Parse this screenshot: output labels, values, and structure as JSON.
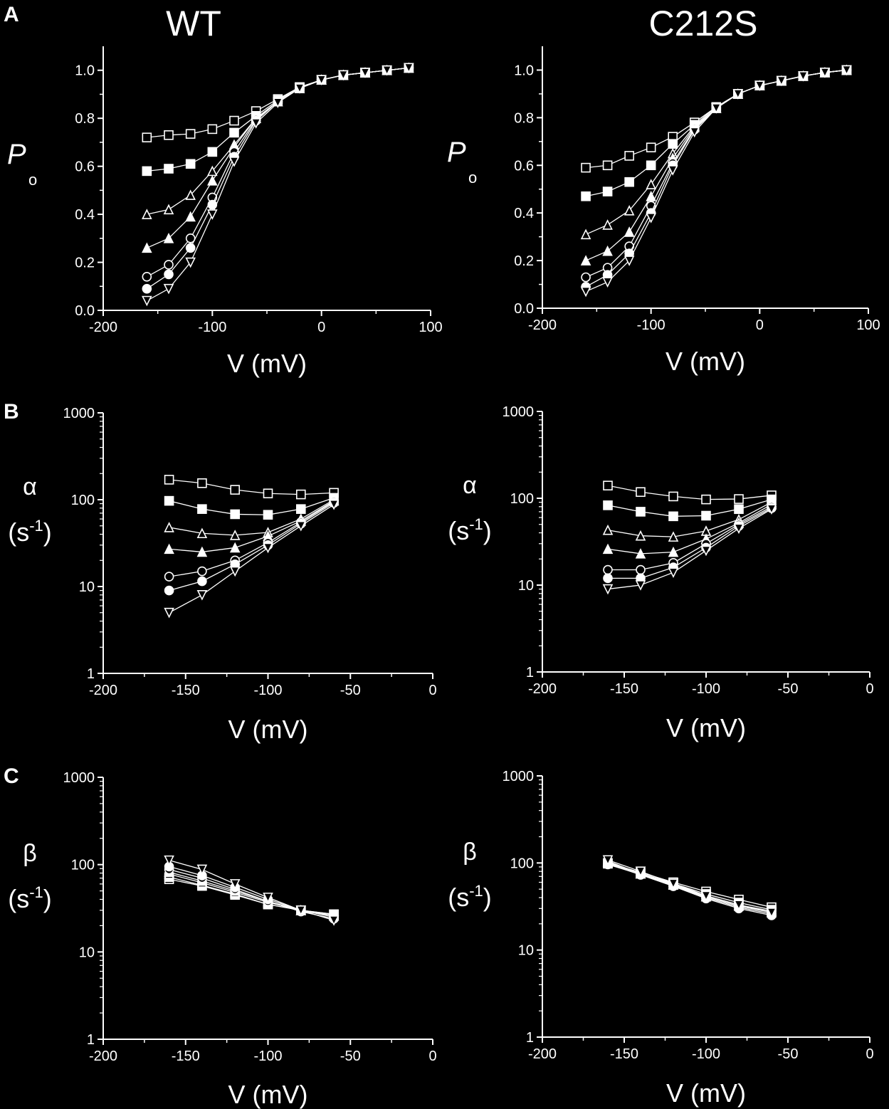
{
  "column_titles": [
    "WT",
    "C212S"
  ],
  "panel_letters": [
    "A",
    "B",
    "C"
  ],
  "chart_data": [
    {
      "id": "A-WT",
      "panel": "A",
      "type": "scatter",
      "xlim": [
        -200,
        100
      ],
      "ylim": [
        0,
        1.1
      ],
      "yscale": "linear",
      "xticks": [
        -200,
        -100,
        0,
        100
      ],
      "xtick_labels": [
        "-200",
        "-100",
        "0",
        "100"
      ],
      "yticks": [
        0,
        0.2,
        0.4,
        0.6,
        0.8,
        1.0
      ],
      "ytick_labels": [
        "0.0",
        "0.2",
        "0.4",
        "0.6",
        "0.8",
        "1.0"
      ],
      "xlabel": "V (mV)",
      "ylabel": {
        "main": "P",
        "sub": "o"
      },
      "x": [
        -160,
        -140,
        -120,
        -100,
        -80,
        -60,
        -40,
        -20,
        0,
        20,
        40,
        60,
        80
      ],
      "series": [
        {
          "marker": "open-square",
          "values": [
            0.72,
            0.73,
            0.735,
            0.755,
            0.79,
            0.83,
            0.88,
            0.93,
            0.96,
            0.98,
            0.99,
            1.0,
            1.01
          ]
        },
        {
          "marker": "filled-square",
          "values": [
            0.58,
            0.59,
            0.61,
            0.66,
            0.74,
            0.81,
            0.875,
            0.93,
            0.96,
            0.98,
            0.99,
            1.0,
            1.01
          ]
        },
        {
          "marker": "open-triangle",
          "values": [
            0.4,
            0.42,
            0.48,
            0.58,
            0.69,
            0.8,
            0.87,
            0.925,
            0.96,
            0.98,
            0.99,
            1.0,
            1.01
          ]
        },
        {
          "marker": "filled-triangle",
          "values": [
            0.26,
            0.3,
            0.39,
            0.54,
            0.68,
            0.8,
            0.87,
            0.925,
            0.96,
            0.98,
            0.99,
            1.0,
            1.01
          ]
        },
        {
          "marker": "open-circle",
          "values": [
            0.14,
            0.19,
            0.3,
            0.47,
            0.66,
            0.795,
            0.87,
            0.925,
            0.96,
            0.98,
            0.99,
            1.0,
            1.01
          ]
        },
        {
          "marker": "filled-circle",
          "values": [
            0.09,
            0.15,
            0.26,
            0.44,
            0.64,
            0.79,
            0.87,
            0.925,
            0.96,
            0.98,
            0.99,
            1.0,
            1.01
          ]
        },
        {
          "marker": "open-inv-triangle",
          "values": [
            0.04,
            0.09,
            0.2,
            0.4,
            0.62,
            0.78,
            0.865,
            0.925,
            0.96,
            0.98,
            0.99,
            1.0,
            1.01
          ]
        }
      ]
    },
    {
      "id": "A-C212S",
      "panel": "A",
      "type": "scatter",
      "xlim": [
        -200,
        100
      ],
      "ylim": [
        0,
        1.1
      ],
      "yscale": "linear",
      "xticks": [
        -200,
        -100,
        0,
        100
      ],
      "xtick_labels": [
        "-200",
        "-100",
        "0",
        "100"
      ],
      "yticks": [
        0,
        0.2,
        0.4,
        0.6,
        0.8,
        1.0
      ],
      "ytick_labels": [
        "0.0",
        "0.2",
        "0.4",
        "0.6",
        "0.8",
        "1.0"
      ],
      "xlabel": "V (mV)",
      "ylabel": {
        "main": "P",
        "sub": "o"
      },
      "x": [
        -160,
        -140,
        -120,
        -100,
        -80,
        -60,
        -40,
        -20,
        0,
        20,
        40,
        60,
        80
      ],
      "series": [
        {
          "marker": "open-square",
          "values": [
            0.59,
            0.6,
            0.64,
            0.675,
            0.72,
            0.78,
            0.845,
            0.9,
            0.935,
            0.955,
            0.975,
            0.99,
            1.0
          ]
        },
        {
          "marker": "filled-square",
          "values": [
            0.47,
            0.49,
            0.53,
            0.6,
            0.69,
            0.77,
            0.845,
            0.9,
            0.935,
            0.955,
            0.975,
            0.99,
            1.0
          ]
        },
        {
          "marker": "open-triangle",
          "values": [
            0.31,
            0.35,
            0.41,
            0.52,
            0.65,
            0.765,
            0.84,
            0.9,
            0.935,
            0.955,
            0.975,
            0.99,
            1.0
          ]
        },
        {
          "marker": "filled-triangle",
          "values": [
            0.2,
            0.24,
            0.32,
            0.47,
            0.63,
            0.76,
            0.84,
            0.9,
            0.935,
            0.955,
            0.975,
            0.99,
            1.0
          ]
        },
        {
          "marker": "open-circle",
          "values": [
            0.13,
            0.17,
            0.26,
            0.43,
            0.61,
            0.755,
            0.84,
            0.9,
            0.935,
            0.955,
            0.975,
            0.99,
            1.0
          ]
        },
        {
          "marker": "filled-circle",
          "values": [
            0.09,
            0.14,
            0.23,
            0.4,
            0.6,
            0.75,
            0.84,
            0.9,
            0.935,
            0.955,
            0.975,
            0.99,
            1.0
          ]
        },
        {
          "marker": "open-inv-triangle",
          "values": [
            0.07,
            0.11,
            0.2,
            0.38,
            0.58,
            0.74,
            0.84,
            0.9,
            0.935,
            0.955,
            0.975,
            0.99,
            1.0
          ]
        }
      ]
    },
    {
      "id": "B-WT",
      "panel": "B",
      "type": "scatter",
      "xlim": [
        -200,
        0
      ],
      "ylim": [
        1,
        1000
      ],
      "yscale": "log",
      "xticks": [
        -200,
        -150,
        -100,
        -50,
        0
      ],
      "xtick_labels": [
        "-200",
        "-150",
        "-100",
        "-50",
        "0"
      ],
      "yticks": [
        1,
        10,
        100,
        1000
      ],
      "ytick_labels": [
        "1",
        "10",
        "100",
        "1000"
      ],
      "xlabel": "V (mV)",
      "ylabel": {
        "greek": "α",
        "unit_main": "(s",
        "unit_sup": "-1",
        "unit_end": ")"
      },
      "x": [
        -160,
        -140,
        -120,
        -100,
        -80,
        -60
      ],
      "series": [
        {
          "marker": "open-square",
          "values": [
            170,
            155,
            130,
            118,
            115,
            120
          ]
        },
        {
          "marker": "filled-square",
          "values": [
            97,
            78,
            68,
            67,
            78,
            105
          ]
        },
        {
          "marker": "open-triangle",
          "values": [
            48,
            41,
            39,
            42,
            60,
            100
          ]
        },
        {
          "marker": "filled-triangle",
          "values": [
            27,
            25,
            28,
            38,
            57,
            97
          ]
        },
        {
          "marker": "open-circle",
          "values": [
            13,
            15,
            20,
            32,
            55,
            95
          ]
        },
        {
          "marker": "filled-circle",
          "values": [
            9,
            11.5,
            18,
            30,
            53,
            92
          ]
        },
        {
          "marker": "open-inv-triangle",
          "values": [
            5,
            8,
            15,
            28,
            50,
            88
          ]
        }
      ]
    },
    {
      "id": "B-C212S",
      "panel": "B",
      "type": "scatter",
      "xlim": [
        -200,
        0
      ],
      "ylim": [
        1,
        1000
      ],
      "yscale": "log",
      "xticks": [
        -200,
        -150,
        -100,
        -50,
        0
      ],
      "xtick_labels": [
        "-200",
        "-150",
        "-100",
        "-50",
        "0"
      ],
      "yticks": [
        1,
        10,
        100,
        1000
      ],
      "ytick_labels": [
        "1",
        "10",
        "100",
        "1000"
      ],
      "xlabel": "V (mV)",
      "ylabel": {
        "greek": "α",
        "unit_main": "(s",
        "unit_sup": "-1",
        "unit_end": ")"
      },
      "x": [
        -160,
        -140,
        -120,
        -100,
        -80,
        -60
      ],
      "series": [
        {
          "marker": "open-square",
          "values": [
            140,
            118,
            105,
            97,
            98,
            108
          ]
        },
        {
          "marker": "filled-square",
          "values": [
            83,
            70,
            62,
            63,
            75,
            97
          ]
        },
        {
          "marker": "open-triangle",
          "values": [
            43,
            37,
            36,
            42,
            57,
            90
          ]
        },
        {
          "marker": "filled-triangle",
          "values": [
            26,
            23,
            24,
            34,
            52,
            85
          ]
        },
        {
          "marker": "open-circle",
          "values": [
            15,
            15,
            18,
            30,
            50,
            80
          ]
        },
        {
          "marker": "filled-circle",
          "values": [
            12,
            12,
            16,
            27,
            48,
            77
          ]
        },
        {
          "marker": "open-inv-triangle",
          "values": [
            9,
            10,
            14,
            25,
            45,
            75
          ]
        }
      ]
    },
    {
      "id": "C-WT",
      "panel": "C",
      "type": "scatter",
      "xlim": [
        -200,
        0
      ],
      "ylim": [
        1,
        1000
      ],
      "yscale": "log",
      "xticks": [
        -200,
        -150,
        -100,
        -50,
        0
      ],
      "xtick_labels": [
        "-200",
        "-150",
        "-100",
        "-50",
        "0"
      ],
      "yticks": [
        1,
        10,
        100,
        1000
      ],
      "ytick_labels": [
        "1",
        "10",
        "100",
        "1000"
      ],
      "xlabel": "V (mV)",
      "ylabel": {
        "greek": "β",
        "unit_main": "(s",
        "unit_sup": "-1",
        "unit_end": ")"
      },
      "x": [
        -160,
        -140,
        -120,
        -100,
        -80,
        -60
      ],
      "series": [
        {
          "marker": "open-square",
          "values": [
            68,
            57,
            45,
            35,
            30,
            27
          ]
        },
        {
          "marker": "filled-square",
          "values": [
            72,
            58,
            46,
            35,
            30,
            27
          ]
        },
        {
          "marker": "open-triangle",
          "values": [
            78,
            62,
            48,
            37,
            30,
            26
          ]
        },
        {
          "marker": "filled-triangle",
          "values": [
            82,
            65,
            50,
            38,
            30,
            26
          ]
        },
        {
          "marker": "open-circle",
          "values": [
            88,
            70,
            52,
            38,
            29,
            24
          ]
        },
        {
          "marker": "filled-circle",
          "values": [
            95,
            75,
            55,
            40,
            30,
            25
          ]
        },
        {
          "marker": "open-inv-triangle",
          "values": [
            112,
            88,
            60,
            42,
            30,
            23
          ]
        }
      ]
    },
    {
      "id": "C-C212S",
      "panel": "C",
      "type": "scatter",
      "xlim": [
        -200,
        0
      ],
      "ylim": [
        1,
        1000
      ],
      "yscale": "log",
      "xticks": [
        -200,
        -150,
        -100,
        -50,
        0
      ],
      "xtick_labels": [
        "-200",
        "-150",
        "-100",
        "-50",
        "0"
      ],
      "yticks": [
        1,
        10,
        100,
        1000
      ],
      "ytick_labels": [
        "1",
        "10",
        "100",
        "1000"
      ],
      "xlabel": "V (mV)",
      "ylabel": {
        "greek": "β",
        "unit_main": "(s",
        "unit_sup": "-1",
        "unit_end": ")"
      },
      "x": [
        -160,
        -140,
        -120,
        -100,
        -80,
        -60
      ],
      "series": [
        {
          "marker": "open-square",
          "values": [
            100,
            78,
            60,
            47,
            38,
            31
          ]
        },
        {
          "marker": "filled-square",
          "values": [
            98,
            76,
            58,
            44,
            35,
            29
          ]
        },
        {
          "marker": "open-triangle",
          "values": [
            102,
            76,
            57,
            42,
            33,
            28
          ]
        },
        {
          "marker": "filled-triangle",
          "values": [
            105,
            75,
            56,
            41,
            32,
            27
          ]
        },
        {
          "marker": "open-circle",
          "values": [
            96,
            74,
            55,
            40,
            31,
            26
          ]
        },
        {
          "marker": "filled-circle",
          "values": [
            98,
            73,
            54,
            39,
            30,
            25
          ]
        },
        {
          "marker": "open-inv-triangle",
          "values": [
            108,
            80,
            58,
            42,
            33,
            27
          ]
        }
      ]
    }
  ]
}
